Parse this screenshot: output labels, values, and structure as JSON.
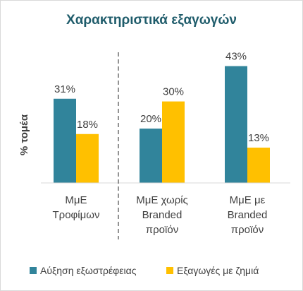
{
  "chart_data": {
    "type": "bar",
    "title": "Χαρακτηριστικά εξαγωγών",
    "xlabel": "",
    "ylabel": "% τομέα",
    "ylim": [
      0,
      0.52
    ],
    "grid": false,
    "legend_position": "bottom",
    "categories": [
      [
        "ΜμΕ",
        "Τροφίμων"
      ],
      [
        "ΜμΕ χωρίς",
        "Branded",
        "προϊόν"
      ],
      [
        "ΜμΕ με",
        "Branded",
        "προϊόν"
      ]
    ],
    "series": [
      {
        "name": "Αύξηση εξωστρέφειας",
        "values": [
          0.31,
          0.2,
          0.43
        ],
        "labels": [
          "31%",
          "20%",
          "43%"
        ],
        "color": "#31849B"
      },
      {
        "name": "Εξαγωγές με ζημιά",
        "values": [
          0.18,
          0.3,
          0.13
        ],
        "labels": [
          "18%",
          "30%",
          "13%"
        ],
        "color": "#FFC000"
      }
    ],
    "separator": "dashed line between first and second category",
    "title_color": "#1F5C6B"
  }
}
